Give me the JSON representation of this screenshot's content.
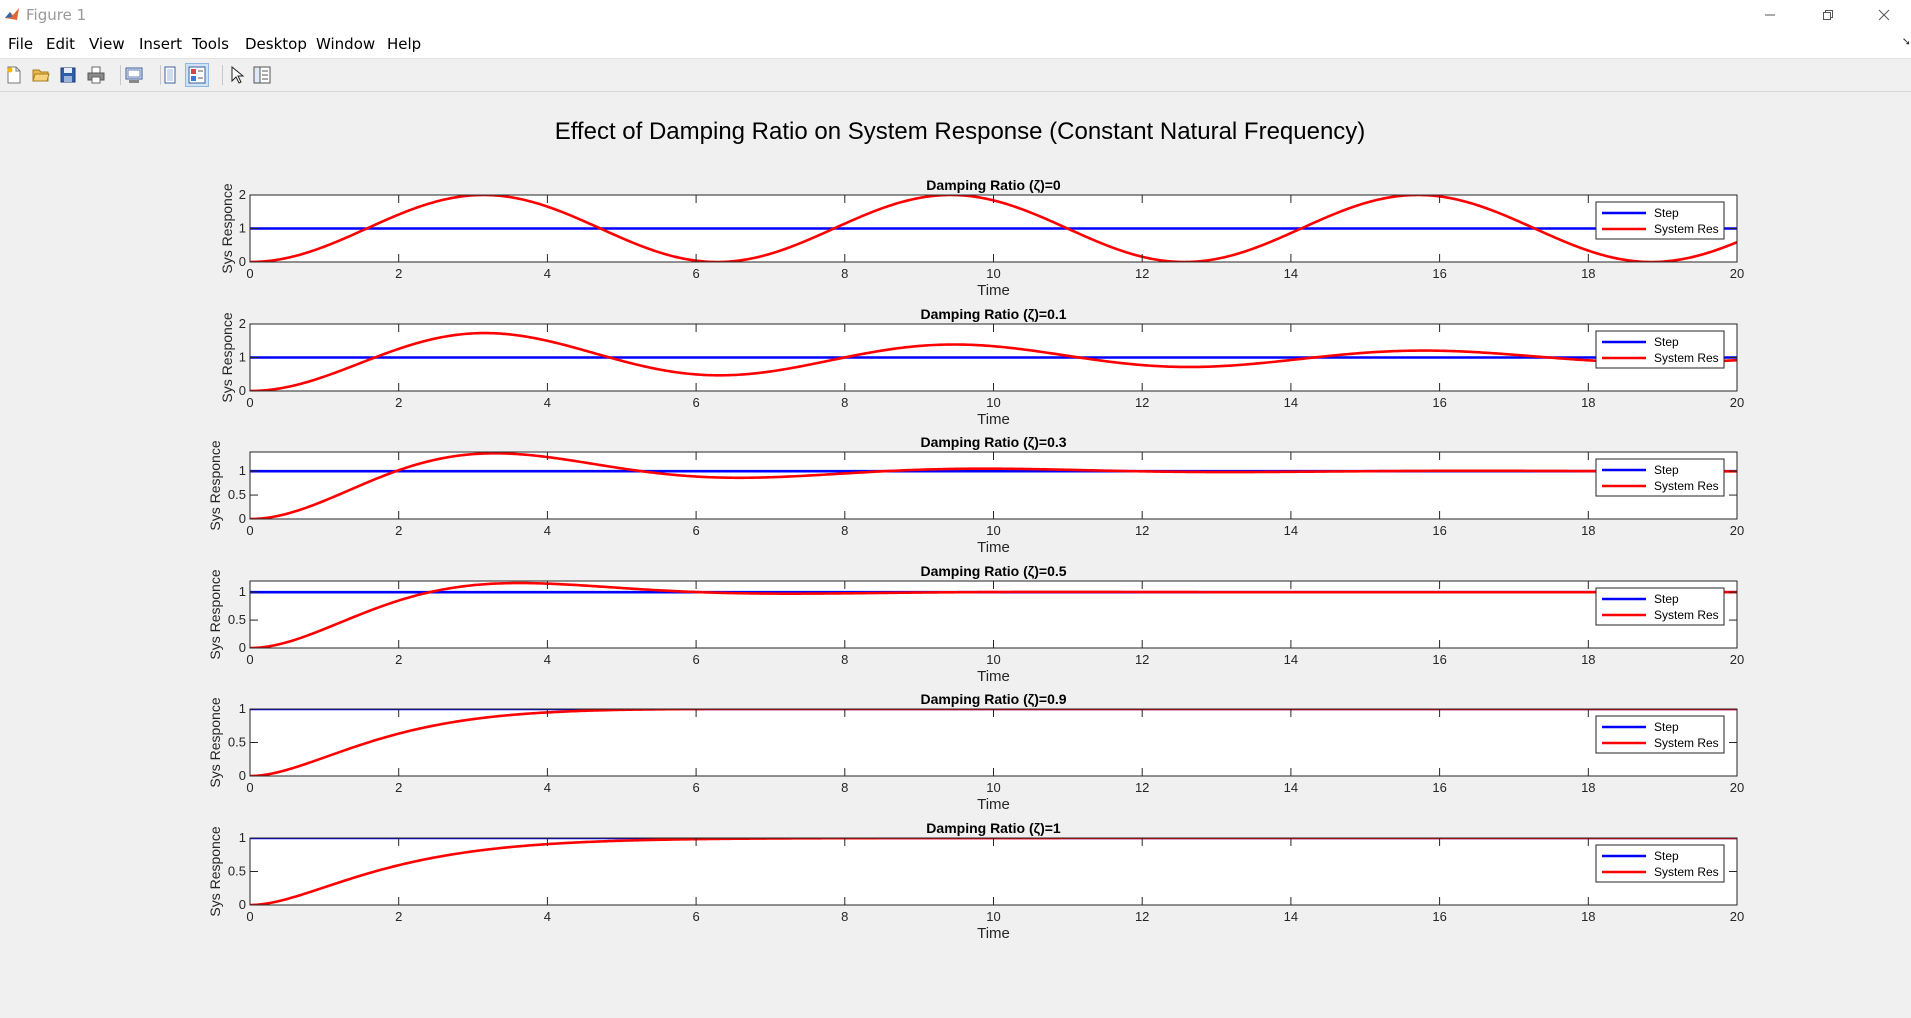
{
  "window": {
    "title": "Figure 1",
    "icon": "matlab-icon",
    "controls": [
      "minimize-icon",
      "restore-icon",
      "close-icon"
    ]
  },
  "menu": {
    "items": [
      "File",
      "Edit",
      "View",
      "Insert",
      "Tools",
      "Desktop",
      "Window",
      "Help"
    ],
    "dock_arrow": "➘"
  },
  "toolbar": {
    "buttons": [
      {
        "name": "new-figure-button",
        "icon": "new-file-icon"
      },
      {
        "name": "open-file-button",
        "icon": "open-folder-icon"
      },
      {
        "name": "save-figure-button",
        "icon": "save-icon"
      },
      {
        "name": "print-figure-button",
        "icon": "print-icon"
      },
      {
        "name": "link-plot-button",
        "icon": "link-plot-icon"
      },
      {
        "name": "hide-plot-tools-button",
        "icon": "hide-plot-tools-icon"
      },
      {
        "name": "show-plot-tools-button",
        "icon": "show-plot-tools-icon",
        "active": true
      },
      {
        "name": "edit-plot-button",
        "icon": "pointer-arrow-icon"
      },
      {
        "name": "property-inspector-button",
        "icon": "property-inspector-icon"
      }
    ]
  },
  "figure": {
    "suptitle": "Effect of Damping Ratio on System Response (Constant Natural Frequency)"
  },
  "chart_data": [
    {
      "type": "line",
      "title": "Damping Ratio (ζ)=0",
      "xlabel": "Time",
      "ylabel": "Sys Responce",
      "xlim": [
        0,
        20
      ],
      "ylim": [
        0,
        2
      ],
      "xticks": [
        "0",
        "2",
        "4",
        "6",
        "8",
        "10",
        "12",
        "14",
        "16",
        "18",
        "20"
      ],
      "yticks": [
        "0",
        "1",
        "2"
      ],
      "zeta": 0,
      "omega_n": 1,
      "legend": "top-right",
      "series": [
        {
          "name": "Step",
          "color": "#0000ff",
          "y": 1
        },
        {
          "name": "System Res",
          "color": "#ff0000"
        }
      ]
    },
    {
      "type": "line",
      "title": "Damping Ratio (ζ)=0.1",
      "xlabel": "Time",
      "ylabel": "Sys Responce",
      "xlim": [
        0,
        20
      ],
      "ylim": [
        0,
        2
      ],
      "xticks": [
        "0",
        "2",
        "4",
        "6",
        "8",
        "10",
        "12",
        "14",
        "16",
        "18",
        "20"
      ],
      "yticks": [
        "0",
        "1",
        "2"
      ],
      "zeta": 0.1,
      "omega_n": 1,
      "legend": "top-right",
      "series": [
        {
          "name": "Step",
          "color": "#0000ff",
          "y": 1
        },
        {
          "name": "System Res",
          "color": "#ff0000"
        }
      ]
    },
    {
      "type": "line",
      "title": "Damping Ratio (ζ)=0.3",
      "xlabel": "Time",
      "ylabel": "Sys Responce",
      "xlim": [
        0,
        20
      ],
      "ylim": [
        0,
        1.4
      ],
      "xticks": [
        "0",
        "2",
        "4",
        "6",
        "8",
        "10",
        "12",
        "14",
        "16",
        "18",
        "20"
      ],
      "yticks": [
        "0",
        "0.5",
        "1"
      ],
      "zeta": 0.3,
      "omega_n": 1,
      "legend": "top-right",
      "series": [
        {
          "name": "Step",
          "color": "#0000ff",
          "y": 1
        },
        {
          "name": "System Res",
          "color": "#ff0000"
        }
      ]
    },
    {
      "type": "line",
      "title": "Damping Ratio (ζ)=0.5",
      "xlabel": "Time",
      "ylabel": "Sys Responce",
      "xlim": [
        0,
        20
      ],
      "ylim": [
        0,
        1.2
      ],
      "xticks": [
        "0",
        "2",
        "4",
        "6",
        "8",
        "10",
        "12",
        "14",
        "16",
        "18",
        "20"
      ],
      "yticks": [
        "0",
        "0.5",
        "1"
      ],
      "zeta": 0.5,
      "omega_n": 1,
      "legend": "top-right",
      "series": [
        {
          "name": "Step",
          "color": "#0000ff",
          "y": 1
        },
        {
          "name": "System Res",
          "color": "#ff0000"
        }
      ]
    },
    {
      "type": "line",
      "title": "Damping Ratio (ζ)=0.9",
      "xlabel": "Time",
      "ylabel": "Sys Responce",
      "xlim": [
        0,
        20
      ],
      "ylim": [
        0,
        1
      ],
      "xticks": [
        "0",
        "2",
        "4",
        "6",
        "8",
        "10",
        "12",
        "14",
        "16",
        "18",
        "20"
      ],
      "yticks": [
        "0",
        "0.5",
        "1"
      ],
      "zeta": 0.9,
      "omega_n": 1,
      "legend": "top-right",
      "series": [
        {
          "name": "Step",
          "color": "#0000ff",
          "y": 1
        },
        {
          "name": "System Res",
          "color": "#ff0000"
        }
      ]
    },
    {
      "type": "line",
      "title": "Damping Ratio (ζ)=1",
      "xlabel": "Time",
      "ylabel": "Sys Responce",
      "xlim": [
        0,
        20
      ],
      "ylim": [
        0,
        1
      ],
      "xticks": [
        "0",
        "2",
        "4",
        "6",
        "8",
        "10",
        "12",
        "14",
        "16",
        "18",
        "20"
      ],
      "yticks": [
        "0",
        "0.5",
        "1"
      ],
      "zeta": 1,
      "omega_n": 1,
      "legend": "top-right",
      "series": [
        {
          "name": "Step",
          "color": "#0000ff",
          "y": 1
        },
        {
          "name": "System Res",
          "color": "#ff0000"
        }
      ]
    }
  ]
}
